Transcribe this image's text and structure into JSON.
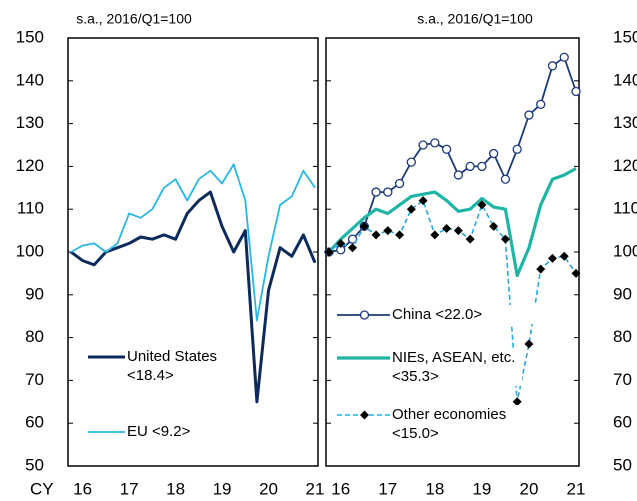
{
  "chart_data": [
    {
      "type": "line",
      "subtitle": "s.a., 2016/Q1=100",
      "xlabel": "CY",
      "categories": [
        null,
        "16",
        null,
        null,
        null,
        "17",
        null,
        null,
        null,
        "18",
        null,
        null,
        null,
        "19",
        null,
        null,
        null,
        "20",
        null,
        null,
        null,
        "21"
      ],
      "ylim": [
        50,
        150
      ],
      "yticks": [
        50,
        60,
        70,
        80,
        90,
        100,
        110,
        120,
        130,
        140,
        150
      ],
      "ytick_side": "left",
      "series": [
        {
          "name": "United States <18.4>",
          "color": "#0d2a5c",
          "width": 3,
          "values": [
            100,
            98,
            97,
            100,
            101,
            102,
            103.5,
            103,
            104,
            103,
            109,
            112,
            114,
            106,
            100,
            105,
            65,
            91,
            101,
            99,
            104,
            97.5
          ]
        },
        {
          "name": "EU <9.2>",
          "color": "#29b6e6",
          "width": 1.8,
          "values": [
            100,
            101.5,
            102,
            100,
            102,
            109,
            108,
            110,
            115,
            117,
            112,
            117,
            119,
            116,
            120.5,
            112,
            84,
            99,
            111,
            113,
            119,
            115
          ]
        }
      ]
    },
    {
      "type": "line",
      "subtitle": "s.a., 2016/Q1=100",
      "categories": [
        null,
        "16",
        null,
        null,
        null,
        "17",
        null,
        null,
        null,
        "18",
        null,
        null,
        null,
        "19",
        null,
        null,
        null,
        "20",
        null,
        null,
        null,
        "21"
      ],
      "ylim": [
        50,
        150
      ],
      "yticks": [
        50,
        60,
        70,
        80,
        90,
        100,
        110,
        120,
        130,
        140,
        150
      ],
      "ytick_side": "right",
      "series": [
        {
          "name": "China <22.0>",
          "color": "#1c3a7a",
          "width": 1.8,
          "marker": "circle",
          "values": [
            100,
            100.5,
            103,
            106,
            114,
            114,
            116,
            121,
            125,
            125.5,
            124,
            118,
            120,
            120,
            123,
            117,
            124,
            132,
            134.5,
            143.5,
            145.5,
            137.5
          ]
        },
        {
          "name": "NIEs, ASEAN, etc. <35.3>",
          "color": "#1fb5a5",
          "width": 3.2,
          "values": [
            100,
            103,
            105.5,
            108,
            110,
            109,
            111,
            113,
            113.5,
            114,
            112,
            109.5,
            110,
            112.5,
            110.5,
            110,
            94.5,
            101,
            111,
            117,
            118,
            119.5
          ]
        },
        {
          "name": "Other economies <15.0>",
          "color": "#29a8e0",
          "width": 1.6,
          "dash": true,
          "marker": "diamond",
          "values": [
            100,
            102,
            101,
            106,
            104,
            105,
            104,
            110,
            112,
            104,
            105.5,
            105,
            103,
            111,
            106,
            103,
            65,
            78.5,
            96,
            98.5,
            99,
            95
          ]
        }
      ]
    }
  ]
}
